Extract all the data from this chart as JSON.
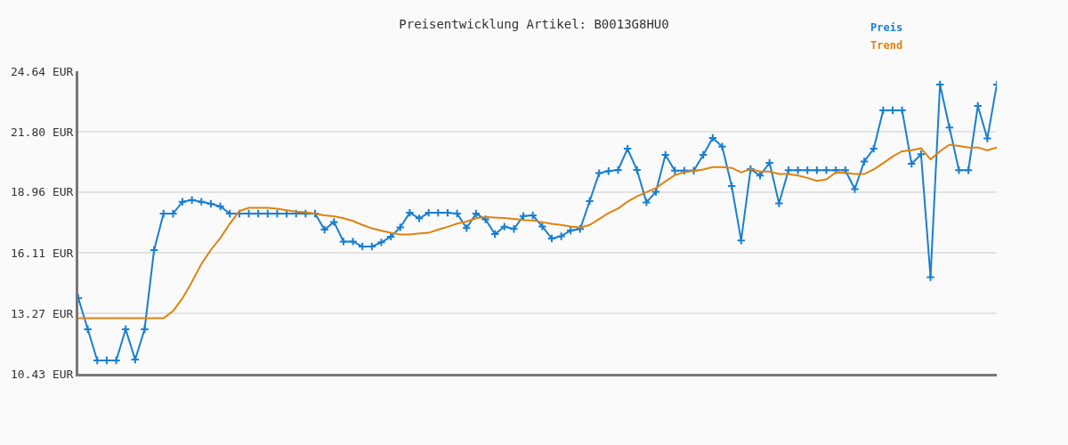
{
  "chart_data": {
    "type": "line",
    "title": "Preisentwicklung Artikel: B0013G8HU0",
    "categories": [
      null,
      null,
      null,
      null,
      null,
      null,
      null,
      null,
      null,
      null,
      null,
      null,
      null,
      null,
      null,
      null,
      null,
      null,
      null,
      null,
      null,
      null,
      null,
      null,
      null,
      null,
      null,
      null,
      null,
      null,
      null,
      null,
      null,
      null,
      null,
      null,
      null,
      null,
      null,
      null,
      null,
      null,
      null,
      null,
      null,
      null,
      null,
      null,
      null,
      null,
      null,
      null,
      null,
      null,
      null,
      null,
      null,
      null,
      null,
      null,
      null,
      null,
      null,
      null,
      null,
      null,
      null,
      null,
      null,
      null,
      null,
      null,
      null,
      null,
      null,
      null,
      null,
      null,
      null,
      null,
      null,
      null,
      null,
      null,
      null,
      null,
      null,
      null,
      null,
      null,
      null,
      null,
      null,
      null,
      null,
      null,
      null,
      null
    ],
    "series": [
      {
        "name": "Preis",
        "color": "#1a7fcf",
        "marker": "cross",
        "values": [
          13.98,
          12.52,
          11.06,
          11.06,
          11.06,
          12.52,
          11.1,
          12.52,
          16.24,
          17.95,
          17.95,
          18.51,
          18.59,
          18.51,
          18.41,
          18.29,
          17.95,
          17.95,
          17.95,
          17.95,
          17.95,
          17.95,
          17.95,
          17.95,
          17.95,
          17.95,
          17.2,
          17.56,
          16.64,
          16.64,
          16.41,
          16.41,
          16.6,
          16.87,
          17.31,
          17.99,
          17.73,
          17.99,
          17.99,
          17.99,
          17.95,
          17.27,
          17.95,
          17.68,
          16.99,
          17.34,
          17.23,
          17.84,
          17.87,
          17.35,
          16.78,
          16.89,
          17.16,
          17.23,
          18.54,
          19.85,
          19.95,
          20.0,
          21.0,
          20.0,
          18.48,
          18.98,
          20.71,
          19.97,
          19.97,
          19.97,
          20.71,
          21.51,
          21.1,
          19.25,
          16.69,
          20.04,
          19.74,
          20.34,
          18.43,
          19.99,
          19.99,
          19.99,
          19.99,
          19.99,
          19.99,
          19.99,
          19.1,
          20.4,
          21.0,
          22.8,
          22.8,
          22.8,
          20.29,
          20.74,
          14.96,
          24.01,
          22.0,
          19.99,
          19.99,
          23.01,
          21.48,
          24.01
        ]
      },
      {
        "name": "Trend",
        "color": "#e0820e",
        "marker": "none",
        "values": [
          13.04,
          13.04,
          13.04,
          13.04,
          13.04,
          13.04,
          13.04,
          13.04,
          13.04,
          13.04,
          13.38,
          13.97,
          14.75,
          15.59,
          16.25,
          16.81,
          17.48,
          18.07,
          18.22,
          18.22,
          18.22,
          18.18,
          18.11,
          18.05,
          18.02,
          17.95,
          17.87,
          17.83,
          17.73,
          17.61,
          17.42,
          17.26,
          17.15,
          17.05,
          16.97,
          16.97,
          17.02,
          17.05,
          17.2,
          17.33,
          17.48,
          17.58,
          17.73,
          17.8,
          17.77,
          17.74,
          17.7,
          17.65,
          17.63,
          17.55,
          17.47,
          17.42,
          17.35,
          17.3,
          17.42,
          17.7,
          17.98,
          18.19,
          18.51,
          18.76,
          18.96,
          19.15,
          19.46,
          19.76,
          19.9,
          19.96,
          20.02,
          20.14,
          20.14,
          20.1,
          19.89,
          20.04,
          19.93,
          19.93,
          19.81,
          19.81,
          19.74,
          19.63,
          19.49,
          19.56,
          19.89,
          19.86,
          19.81,
          19.81,
          20.03,
          20.32,
          20.63,
          20.88,
          20.93,
          21.02,
          20.5,
          20.88,
          21.19,
          21.13,
          21.06,
          21.06,
          20.92,
          21.06
        ]
      }
    ],
    "ylim": [
      10.43,
      24.64
    ],
    "yticks": [
      {
        "value": 10.43,
        "label": "10.43 EUR"
      },
      {
        "value": 13.27,
        "label": "13.27 EUR"
      },
      {
        "value": 16.11,
        "label": "16.11 EUR"
      },
      {
        "value": 18.96,
        "label": "18.96 EUR"
      },
      {
        "value": 21.8,
        "label": "21.80 EUR"
      },
      {
        "value": 24.64,
        "label": "24.64 EUR"
      }
    ],
    "grid": "y",
    "legend": "top right",
    "line_style": "solid",
    "tick_labels": "y"
  }
}
